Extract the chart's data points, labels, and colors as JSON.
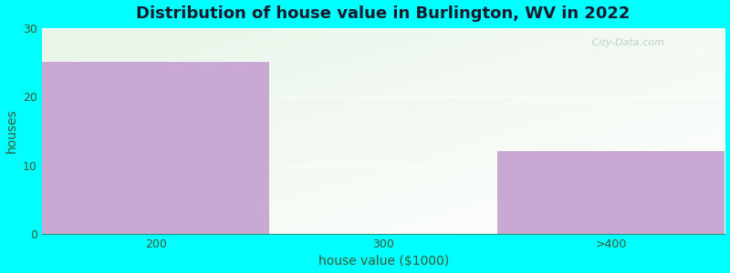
{
  "title": "Distribution of house value in Burlington, WV in 2022",
  "xlabel": "house value ($1000)",
  "ylabel": "houses",
  "categories": [
    "200",
    "300",
    ">400"
  ],
  "values": [
    25,
    0,
    12
  ],
  "bar_color": "#c9a8d4",
  "background_color": "#00ffff",
  "ylim": [
    0,
    30
  ],
  "yticks": [
    0,
    10,
    20,
    30
  ],
  "title_fontsize": 13,
  "axis_label_fontsize": 10,
  "tick_fontsize": 9,
  "title_color": "#1a1a2e",
  "label_color": "#3a5a3a",
  "watermark": " City-Data.com",
  "watermark_color": "#b8cdb8",
  "plot_bg_color_topleft": "#e8f5e8",
  "plot_bg_color_white": "#ffffff"
}
